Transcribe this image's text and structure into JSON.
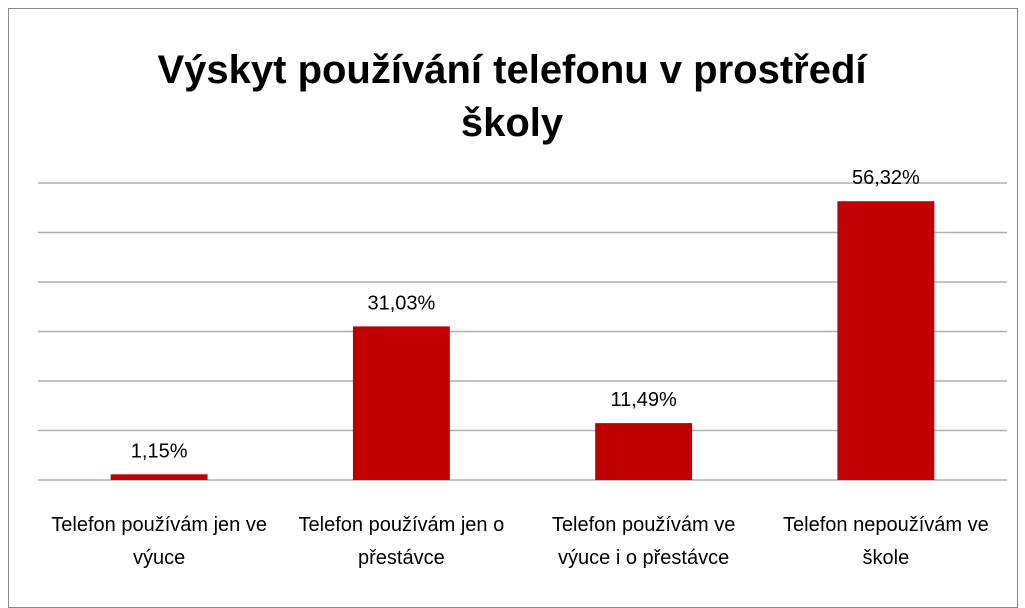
{
  "chart_data": {
    "type": "bar",
    "title": "Výskyt používání telefonu v prostředí školy",
    "categories": [
      "Telefon používám jen ve výuce",
      "Telefon používám jen o přestávce",
      "Telefon používám ve výuce i o přestávce",
      "Telefon nepoužívám ve škole"
    ],
    "values": [
      1.15,
      31.03,
      11.49,
      56.32
    ],
    "value_labels": [
      "1,15%",
      "31,03%",
      "11,49%",
      "56,32%"
    ],
    "color": "#c00000",
    "ylim": [
      0,
      60
    ],
    "yticks": [
      0,
      10,
      20,
      30,
      40,
      50,
      60
    ],
    "grid": true
  }
}
